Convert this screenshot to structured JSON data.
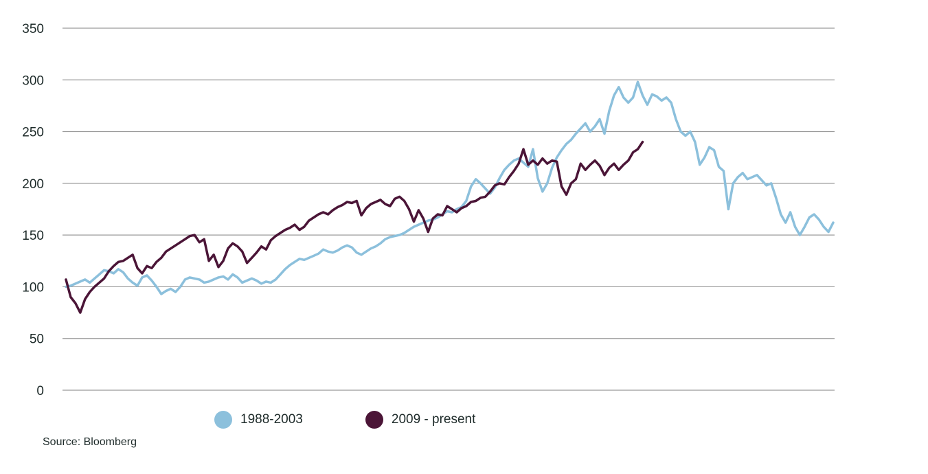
{
  "chart_data": {
    "type": "line",
    "title": "",
    "xlabel": "",
    "ylabel": "",
    "ylim": [
      0,
      350
    ],
    "yticks": [
      0,
      50,
      100,
      150,
      200,
      250,
      300,
      350
    ],
    "grid": "horizontal",
    "legend_position": "bottom",
    "series": [
      {
        "name": "1988-2003",
        "color": "#8cc0dc",
        "values": [
          100,
          101,
          103,
          105,
          107,
          104,
          108,
          112,
          116,
          115,
          113,
          117,
          114,
          108,
          104,
          101,
          109,
          111,
          106,
          100,
          93,
          96,
          98,
          95,
          100,
          107,
          109,
          108,
          107,
          104,
          105,
          107,
          109,
          110,
          107,
          112,
          109,
          104,
          106,
          108,
          106,
          103,
          105,
          104,
          107,
          112,
          117,
          121,
          124,
          127,
          126,
          128,
          130,
          132,
          136,
          134,
          133,
          135,
          138,
          140,
          138,
          133,
          131,
          134,
          137,
          139,
          142,
          146,
          148,
          149,
          150,
          152,
          155,
          158,
          160,
          162,
          164,
          165,
          167,
          170,
          173,
          172,
          175,
          177,
          183,
          197,
          204,
          200,
          195,
          190,
          196,
          205,
          213,
          218,
          222,
          224,
          220,
          216,
          233,
          205,
          192,
          200,
          215,
          225,
          232,
          238,
          242,
          248,
          253,
          258,
          250,
          255,
          262,
          248,
          270,
          285,
          293,
          283,
          278,
          283,
          298,
          285,
          276,
          286,
          284,
          280,
          283,
          278,
          262,
          250,
          246,
          250,
          240,
          218,
          225,
          235,
          232,
          216,
          212,
          175,
          200,
          206,
          210,
          204,
          206,
          208,
          203,
          198,
          200,
          186,
          170,
          162,
          172,
          158,
          150,
          158,
          167,
          170,
          165,
          158,
          153,
          162
        ]
      },
      {
        "name": "2009 - present",
        "color": "#4b1537",
        "values": [
          107,
          90,
          84,
          75,
          88,
          95,
          100,
          104,
          108,
          115,
          120,
          124,
          125,
          128,
          131,
          118,
          113,
          120,
          118,
          124,
          128,
          134,
          137,
          140,
          143,
          146,
          149,
          150,
          143,
          146,
          125,
          131,
          119,
          125,
          137,
          142,
          139,
          134,
          123,
          128,
          133,
          139,
          136,
          145,
          149,
          152,
          155,
          157,
          160,
          155,
          158,
          164,
          167,
          170,
          172,
          170,
          174,
          177,
          179,
          182,
          181,
          183,
          169,
          176,
          180,
          182,
          184,
          180,
          178,
          185,
          187,
          183,
          175,
          163,
          174,
          166,
          153,
          166,
          170,
          169,
          178,
          175,
          172,
          176,
          178,
          182,
          183,
          186,
          187,
          192,
          198,
          200,
          199,
          206,
          212,
          219,
          233,
          218,
          222,
          218,
          224,
          219,
          222,
          221,
          197,
          189,
          200,
          204,
          219,
          213,
          218,
          222,
          217,
          208,
          215,
          219,
          213,
          218,
          222,
          230,
          233,
          240
        ]
      }
    ]
  },
  "legend": [
    {
      "label": "1988-2003",
      "color": "#8cc0dc"
    },
    {
      "label": "2009 - present",
      "color": "#4b1537"
    }
  ],
  "source": "Source: Bloomberg"
}
